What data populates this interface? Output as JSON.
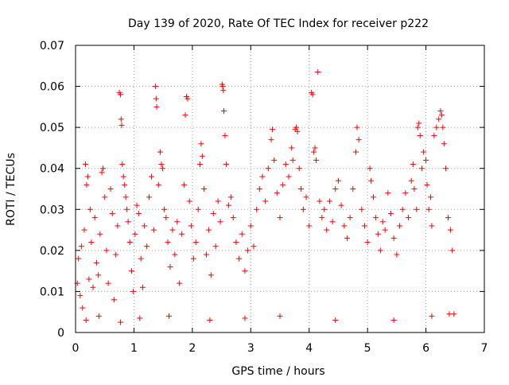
{
  "chart_data": {
    "type": "scatter",
    "title": "Day 139 of 2020, Rate Of TEC Index for receiver p222",
    "xlabel": "GPS time / hours",
    "ylabel": "ROTI / TECUs",
    "xlim": [
      0,
      7
    ],
    "ylim": [
      0,
      0.07
    ],
    "xticks": [
      {
        "value": 0,
        "label": "0"
      },
      {
        "value": 1,
        "label": "1"
      },
      {
        "value": 2,
        "label": "2"
      },
      {
        "value": 3,
        "label": "3"
      },
      {
        "value": 4,
        "label": "4"
      },
      {
        "value": 5,
        "label": "5"
      },
      {
        "value": 6,
        "label": "6"
      },
      {
        "value": 7,
        "label": "7"
      }
    ],
    "yticks": [
      {
        "value": 0,
        "label": "0"
      },
      {
        "value": 0.01,
        "label": "0.01"
      },
      {
        "value": 0.02,
        "label": "0.02"
      },
      {
        "value": 0.03,
        "label": "0.03"
      },
      {
        "value": 0.04,
        "label": "0.04"
      },
      {
        "value": 0.05,
        "label": "0.05"
      },
      {
        "value": 0.06,
        "label": "0.06"
      },
      {
        "value": 0.07,
        "label": "0.07"
      }
    ],
    "grid": true,
    "marker": "+",
    "color": "#ff0000",
    "series": [
      {
        "name": "ROTI",
        "points": [
          [
            0.03,
            0.012
          ],
          [
            0.05,
            0.018
          ],
          [
            0.08,
            0.009
          ],
          [
            0.1,
            0.021
          ],
          [
            0.12,
            0.006
          ],
          [
            0.15,
            0.025
          ],
          [
            0.17,
            0.041
          ],
          [
            0.19,
            0.036
          ],
          [
            0.21,
            0.038
          ],
          [
            0.23,
            0.013
          ],
          [
            0.25,
            0.03
          ],
          [
            0.27,
            0.022
          ],
          [
            0.3,
            0.011
          ],
          [
            0.33,
            0.028
          ],
          [
            0.36,
            0.017
          ],
          [
            0.39,
            0.014
          ],
          [
            0.42,
            0.024
          ],
          [
            0.45,
            0.039
          ],
          [
            0.47,
            0.04
          ],
          [
            0.5,
            0.033
          ],
          [
            0.53,
            0.02
          ],
          [
            0.56,
            0.012
          ],
          [
            0.6,
            0.035
          ],
          [
            0.63,
            0.029
          ],
          [
            0.66,
            0.008
          ],
          [
            0.69,
            0.019
          ],
          [
            0.72,
            0.026
          ],
          [
            0.75,
            0.0585
          ],
          [
            0.77,
            0.058
          ],
          [
            0.78,
            0.052
          ],
          [
            0.79,
            0.0505
          ],
          [
            0.8,
            0.041
          ],
          [
            0.82,
            0.038
          ],
          [
            0.84,
            0.036
          ],
          [
            0.86,
            0.033
          ],
          [
            0.88,
            0.03
          ],
          [
            0.9,
            0.027
          ],
          [
            0.93,
            0.022
          ],
          [
            0.96,
            0.015
          ],
          [
            0.99,
            0.01
          ],
          [
            1.02,
            0.024
          ],
          [
            1.05,
            0.031
          ],
          [
            1.08,
            0.029
          ],
          [
            1.12,
            0.018
          ],
          [
            1.15,
            0.011
          ],
          [
            1.18,
            0.026
          ],
          [
            1.22,
            0.021
          ],
          [
            1.26,
            0.033
          ],
          [
            1.3,
            0.038
          ],
          [
            1.34,
            0.025
          ],
          [
            1.37,
            0.06
          ],
          [
            1.38,
            0.057
          ],
          [
            1.39,
            0.055
          ],
          [
            1.42,
            0.036
          ],
          [
            1.45,
            0.044
          ],
          [
            1.47,
            0.041
          ],
          [
            1.49,
            0.04
          ],
          [
            1.52,
            0.03
          ],
          [
            1.55,
            0.028
          ],
          [
            1.58,
            0.022
          ],
          [
            1.62,
            0.016
          ],
          [
            1.66,
            0.025
          ],
          [
            1.7,
            0.019
          ],
          [
            1.74,
            0.027
          ],
          [
            1.78,
            0.012
          ],
          [
            1.82,
            0.024
          ],
          [
            1.86,
            0.036
          ],
          [
            1.88,
            0.053
          ],
          [
            1.9,
            0.0575
          ],
          [
            1.92,
            0.057
          ],
          [
            1.95,
            0.032
          ],
          [
            1.98,
            0.026
          ],
          [
            2.02,
            0.018
          ],
          [
            2.06,
            0.022
          ],
          [
            2.1,
            0.03
          ],
          [
            2.13,
            0.041
          ],
          [
            2.15,
            0.046
          ],
          [
            2.17,
            0.043
          ],
          [
            2.2,
            0.035
          ],
          [
            2.24,
            0.019
          ],
          [
            2.28,
            0.025
          ],
          [
            2.32,
            0.014
          ],
          [
            2.36,
            0.029
          ],
          [
            2.4,
            0.021
          ],
          [
            2.44,
            0.032
          ],
          [
            2.48,
            0.027
          ],
          [
            2.51,
            0.0605
          ],
          [
            2.52,
            0.06
          ],
          [
            2.53,
            0.059
          ],
          [
            2.54,
            0.054
          ],
          [
            2.56,
            0.048
          ],
          [
            2.58,
            0.041
          ],
          [
            2.62,
            0.031
          ],
          [
            2.66,
            0.033
          ],
          [
            2.7,
            0.028
          ],
          [
            2.75,
            0.022
          ],
          [
            2.8,
            0.018
          ],
          [
            2.85,
            0.024
          ],
          [
            2.9,
            0.015
          ],
          [
            2.95,
            0.02
          ],
          [
            3.0,
            0.026
          ],
          [
            3.05,
            0.021
          ],
          [
            3.1,
            0.03
          ],
          [
            3.15,
            0.035
          ],
          [
            3.2,
            0.038
          ],
          [
            3.25,
            0.032
          ],
          [
            3.3,
            0.04
          ],
          [
            3.35,
            0.047
          ],
          [
            3.37,
            0.0495
          ],
          [
            3.4,
            0.042
          ],
          [
            3.45,
            0.034
          ],
          [
            3.5,
            0.028
          ],
          [
            3.55,
            0.036
          ],
          [
            3.6,
            0.041
          ],
          [
            3.65,
            0.038
          ],
          [
            3.7,
            0.045
          ],
          [
            3.72,
            0.042
          ],
          [
            3.76,
            0.0495
          ],
          [
            3.78,
            0.05
          ],
          [
            3.8,
            0.049
          ],
          [
            3.83,
            0.04
          ],
          [
            3.86,
            0.035
          ],
          [
            3.9,
            0.03
          ],
          [
            3.95,
            0.033
          ],
          [
            4.0,
            0.026
          ],
          [
            4.04,
            0.0585
          ],
          [
            4.06,
            0.058
          ],
          [
            4.08,
            0.044
          ],
          [
            4.1,
            0.045
          ],
          [
            4.12,
            0.042
          ],
          [
            4.15,
            0.0635
          ],
          [
            4.18,
            0.032
          ],
          [
            4.22,
            0.028
          ],
          [
            4.26,
            0.03
          ],
          [
            4.3,
            0.025
          ],
          [
            4.35,
            0.032
          ],
          [
            4.4,
            0.027
          ],
          [
            4.45,
            0.035
          ],
          [
            4.5,
            0.037
          ],
          [
            4.55,
            0.031
          ],
          [
            4.6,
            0.026
          ],
          [
            4.65,
            0.023
          ],
          [
            4.7,
            0.028
          ],
          [
            4.75,
            0.035
          ],
          [
            4.8,
            0.044
          ],
          [
            4.82,
            0.05
          ],
          [
            4.85,
            0.047
          ],
          [
            4.9,
            0.03
          ],
          [
            4.95,
            0.026
          ],
          [
            5.0,
            0.022
          ],
          [
            5.04,
            0.04
          ],
          [
            5.06,
            0.037
          ],
          [
            5.1,
            0.033
          ],
          [
            5.14,
            0.028
          ],
          [
            5.18,
            0.024
          ],
          [
            5.22,
            0.02
          ],
          [
            5.26,
            0.027
          ],
          [
            5.3,
            0.025
          ],
          [
            5.35,
            0.034
          ],
          [
            5.4,
            0.029
          ],
          [
            5.45,
            0.023
          ],
          [
            5.5,
            0.019
          ],
          [
            5.55,
            0.026
          ],
          [
            5.6,
            0.03
          ],
          [
            5.65,
            0.034
          ],
          [
            5.7,
            0.028
          ],
          [
            5.75,
            0.037
          ],
          [
            5.78,
            0.041
          ],
          [
            5.8,
            0.035
          ],
          [
            5.84,
            0.03
          ],
          [
            5.86,
            0.05
          ],
          [
            5.88,
            0.051
          ],
          [
            5.9,
            0.048
          ],
          [
            5.93,
            0.04
          ],
          [
            5.96,
            0.044
          ],
          [
            6.0,
            0.042
          ],
          [
            6.02,
            0.036
          ],
          [
            6.05,
            0.03
          ],
          [
            6.08,
            0.033
          ],
          [
            6.1,
            0.026
          ],
          [
            6.14,
            0.048
          ],
          [
            6.18,
            0.05
          ],
          [
            6.22,
            0.052
          ],
          [
            6.25,
            0.054
          ],
          [
            6.27,
            0.053
          ],
          [
            6.29,
            0.05
          ],
          [
            6.31,
            0.046
          ],
          [
            6.34,
            0.04
          ],
          [
            6.38,
            0.028
          ],
          [
            6.42,
            0.025
          ],
          [
            6.45,
            0.02
          ],
          [
            6.48,
            0.0045
          ],
          [
            0.18,
            0.003
          ],
          [
            0.4,
            0.004
          ],
          [
            0.77,
            0.0025
          ],
          [
            1.1,
            0.0035
          ],
          [
            1.6,
            0.004
          ],
          [
            2.3,
            0.003
          ],
          [
            2.9,
            0.0035
          ],
          [
            3.5,
            0.004
          ],
          [
            4.45,
            0.003
          ],
          [
            5.45,
            0.003
          ],
          [
            6.1,
            0.004
          ],
          [
            6.4,
            0.0045
          ]
        ]
      }
    ]
  }
}
